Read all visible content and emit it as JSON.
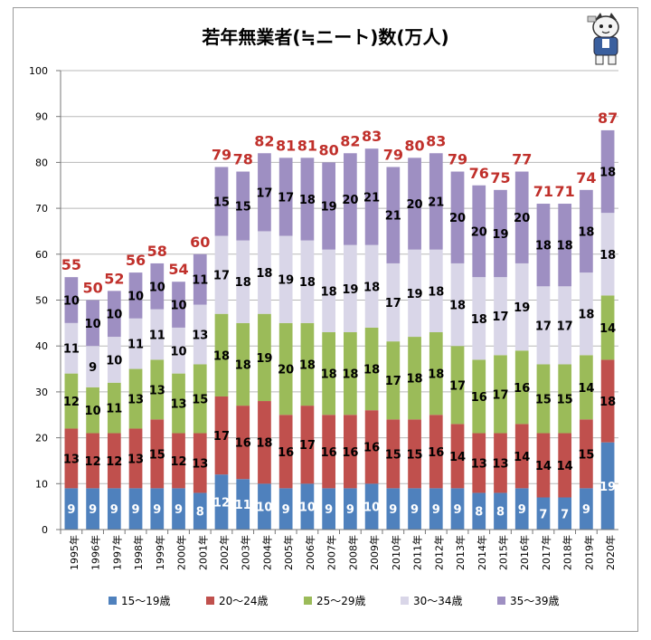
{
  "chart_data": {
    "type": "bar",
    "stacked": true,
    "title": "若年無業者(≒ニート)数(万人)",
    "xlabel": "",
    "ylabel": "",
    "ylim": [
      0,
      100
    ],
    "ytick_step": 10,
    "grid": true,
    "legend_position": "bottom",
    "categories": [
      "1995年",
      "1996年",
      "1997年",
      "1998年",
      "1999年",
      "2000年",
      "2001年",
      "2002年",
      "2003年",
      "2004年",
      "2005年",
      "2006年",
      "2007年",
      "2008年",
      "2009年",
      "2010年",
      "2011年",
      "2012年",
      "2013年",
      "2014年",
      "2015年",
      "2016年",
      "2017年",
      "2018年",
      "2019年",
      "2020年"
    ],
    "series": [
      {
        "name": "15〜19歳",
        "color": "#4f81bd",
        "values": [
          9,
          9,
          9,
          9,
          9,
          9,
          8,
          12,
          11,
          10,
          9,
          10,
          9,
          9,
          10,
          9,
          9,
          9,
          9,
          8,
          8,
          9,
          7,
          7,
          9,
          19
        ]
      },
      {
        "name": "20〜24歳",
        "color": "#c0504d",
        "values": [
          13,
          12,
          12,
          13,
          15,
          12,
          13,
          17,
          16,
          18,
          16,
          17,
          16,
          16,
          16,
          15,
          15,
          16,
          14,
          13,
          13,
          14,
          14,
          14,
          15,
          18
        ]
      },
      {
        "name": "25〜29歳",
        "color": "#9bbb59",
        "values": [
          12,
          10,
          11,
          13,
          13,
          13,
          15,
          18,
          18,
          19,
          20,
          18,
          18,
          18,
          18,
          17,
          18,
          18,
          17,
          16,
          17,
          16,
          15,
          15,
          14,
          14
        ]
      },
      {
        "name": "30〜34歳",
        "color": "#d9d6e8",
        "values": [
          11,
          9,
          10,
          11,
          11,
          10,
          13,
          17,
          18,
          18,
          19,
          18,
          18,
          19,
          18,
          17,
          19,
          18,
          18,
          18,
          17,
          19,
          17,
          17,
          18,
          18
        ]
      },
      {
        "name": "35〜39歳",
        "color": "#9e8fc2",
        "values": [
          10,
          10,
          10,
          10,
          10,
          10,
          11,
          15,
          15,
          17,
          17,
          18,
          19,
          20,
          21,
          21,
          20,
          21,
          20,
          20,
          19,
          20,
          18,
          18,
          18,
          18
        ]
      }
    ],
    "totals": [
      55,
      50,
      52,
      56,
      58,
      54,
      60,
      79,
      78,
      82,
      81,
      81,
      80,
      82,
      83,
      79,
      80,
      83,
      79,
      76,
      75,
      77,
      71,
      71,
      74,
      87
    ],
    "total_label_color": "#c0302b"
  }
}
